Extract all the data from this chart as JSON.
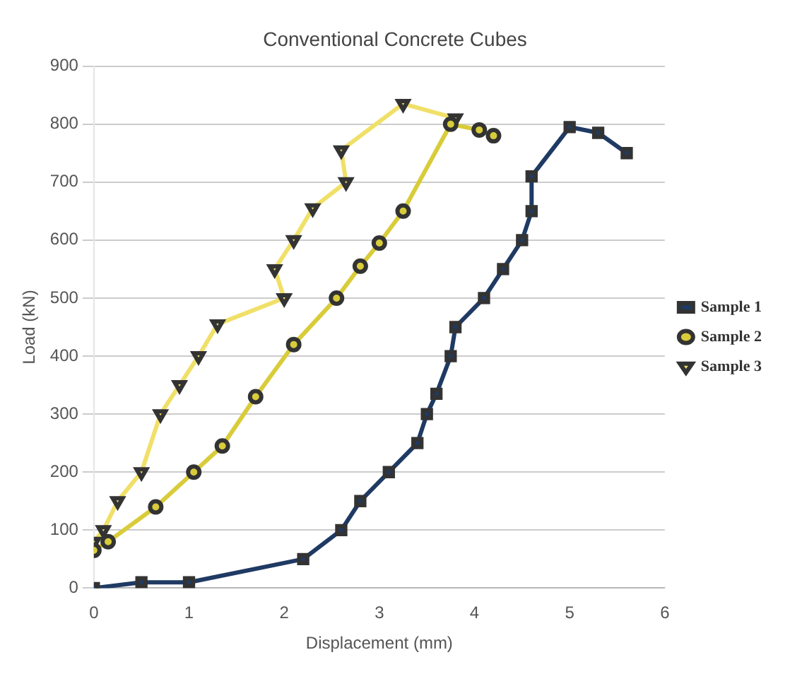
{
  "chart_data": {
    "type": "line",
    "title": "Conventional Concrete Cubes",
    "xlabel": "Displacement (mm)",
    "ylabel": "Load (kN)",
    "xlim": [
      0,
      6
    ],
    "xticks": [
      0,
      1,
      2,
      3,
      4,
      5,
      6
    ],
    "ylim": [
      0,
      900
    ],
    "yticks": [
      0,
      100,
      200,
      300,
      400,
      500,
      600,
      700,
      800,
      900
    ],
    "grid": "y",
    "legend": "right",
    "series": [
      {
        "name": "Sample 1",
        "color": "#1f3a63",
        "marker": "square",
        "x": [
          0,
          0.5,
          1,
          2.2,
          2.6,
          2.8,
          3.1,
          3.4,
          3.5,
          3.6,
          3.75,
          3.8,
          4.1,
          4.3,
          4.5,
          4.6,
          4.6,
          5,
          5.3,
          5.6
        ],
        "values": [
          0,
          10,
          10,
          50,
          100,
          150,
          200,
          250,
          300,
          335,
          400,
          450,
          500,
          550,
          600,
          650,
          710,
          795,
          785,
          750
        ]
      },
      {
        "name": "Sample 2",
        "color": "#d9cc3a",
        "marker": "circle",
        "x": [
          0,
          0.15,
          0.65,
          1.05,
          1.35,
          1.7,
          2.1,
          2.55,
          2.8,
          3,
          3.25,
          3.75,
          4.05,
          4.2
        ],
        "values": [
          65,
          80,
          140,
          200,
          245,
          330,
          420,
          500,
          555,
          595,
          650,
          800,
          790,
          780
        ]
      },
      {
        "name": "Sample 3",
        "color": "#f0e068",
        "marker": "triangle",
        "x": [
          0,
          0.1,
          0.25,
          0.5,
          0.7,
          0.9,
          1.1,
          1.3,
          2,
          1.9,
          2.1,
          2.3,
          2.65,
          2.6,
          3.25,
          3.8
        ],
        "values": [
          80,
          100,
          150,
          200,
          300,
          350,
          400,
          455,
          500,
          550,
          600,
          655,
          700,
          755,
          835,
          810
        ]
      }
    ]
  }
}
